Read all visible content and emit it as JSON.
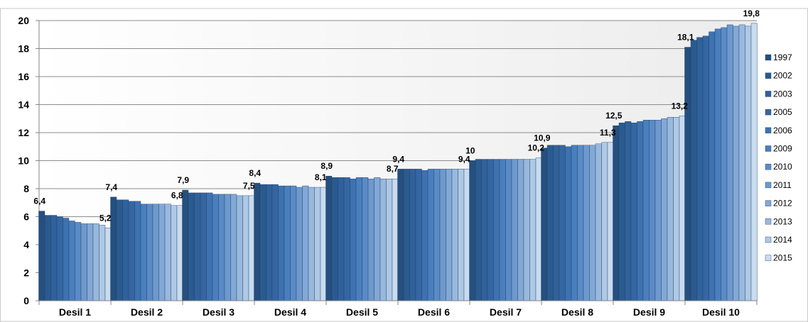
{
  "chart_data": {
    "type": "bar",
    "categories": [
      "Desil 1",
      "Desil 2",
      "Desil 3",
      "Desil 4",
      "Desil 5",
      "Desil 6",
      "Desil 7",
      "Desil 8",
      "Desil 9",
      "Desil 10"
    ],
    "series": [
      {
        "name": "1997",
        "color": "#254f7e",
        "values": [
          6.4,
          7.4,
          7.9,
          8.4,
          8.9,
          9.4,
          10.0,
          10.9,
          12.5,
          18.1
        ]
      },
      {
        "name": "2002",
        "color": "#2b5a8f",
        "values": [
          6.1,
          7.2,
          7.7,
          8.3,
          8.8,
          9.4,
          10.1,
          11.1,
          12.7,
          18.6
        ]
      },
      {
        "name": "2003",
        "color": "#30619a",
        "values": [
          6.1,
          7.2,
          7.7,
          8.3,
          8.8,
          9.4,
          10.1,
          11.1,
          12.8,
          18.8
        ]
      },
      {
        "name": "2005",
        "color": "#3566a2",
        "values": [
          6.0,
          7.1,
          7.7,
          8.3,
          8.8,
          9.4,
          10.1,
          11.1,
          12.7,
          18.9
        ]
      },
      {
        "name": "2006",
        "color": "#3e72b0",
        "values": [
          5.9,
          7.1,
          7.7,
          8.2,
          8.7,
          9.3,
          10.1,
          11.0,
          12.8,
          19.2
        ]
      },
      {
        "name": "2009",
        "color": "#4a7fbe",
        "values": [
          5.7,
          6.9,
          7.6,
          8.2,
          8.8,
          9.4,
          10.1,
          11.1,
          12.9,
          19.4
        ]
      },
      {
        "name": "2010",
        "color": "#5a8bc6",
        "values": [
          5.6,
          6.9,
          7.6,
          8.2,
          8.8,
          9.4,
          10.1,
          11.1,
          12.9,
          19.5
        ]
      },
      {
        "name": "2011",
        "color": "#6d99cd",
        "values": [
          5.5,
          6.9,
          7.6,
          8.1,
          8.7,
          9.4,
          10.1,
          11.1,
          12.9,
          19.7
        ]
      },
      {
        "name": "2012",
        "color": "#82a8d5",
        "values": [
          5.5,
          6.9,
          7.6,
          8.2,
          8.8,
          9.4,
          10.1,
          11.1,
          13.0,
          19.6
        ]
      },
      {
        "name": "2013",
        "color": "#98b8dc",
        "values": [
          5.5,
          6.9,
          7.5,
          8.1,
          8.7,
          9.4,
          10.1,
          11.2,
          13.1,
          19.7
        ]
      },
      {
        "name": "2014",
        "color": "#afc8e4",
        "values": [
          5.4,
          6.8,
          7.5,
          8.1,
          8.7,
          9.4,
          10.1,
          11.3,
          13.1,
          19.6
        ]
      },
      {
        "name": "2015",
        "color": "#c9dbef",
        "values": [
          5.2,
          6.8,
          7.5,
          8.1,
          8.7,
          9.4,
          10.2,
          11.3,
          13.2,
          19.8
        ]
      }
    ],
    "data_labels": {
      "first": [
        "6,4",
        "7,4",
        "7,9",
        "8,4",
        "8,9",
        "9,4",
        "10",
        "10,9",
        "12,5",
        "18,1"
      ],
      "last": [
        "5,2",
        "6,8",
        "7,5",
        "8,1",
        "8,7",
        "9,4",
        "10,2",
        "11,3",
        "13,2",
        "19,8"
      ]
    },
    "yticks": [
      "0",
      "2",
      "4",
      "6",
      "8",
      "10",
      "12",
      "14",
      "16",
      "18",
      "20"
    ],
    "ylim": [
      0,
      20
    ],
    "grid": true,
    "legend_position": "right"
  }
}
